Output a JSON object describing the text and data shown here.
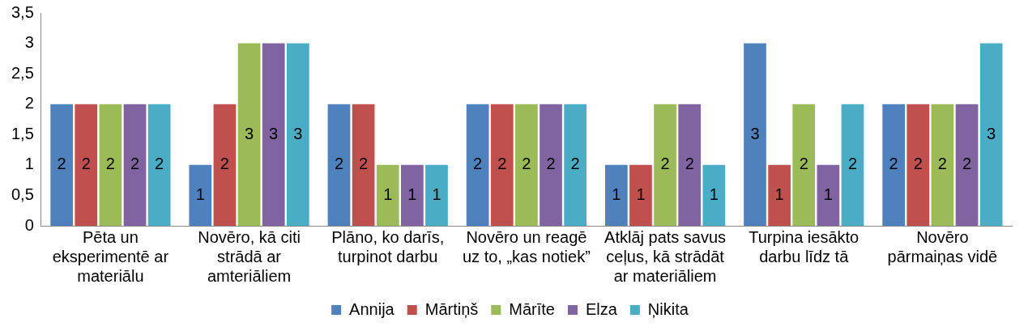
{
  "chart_data": {
    "type": "bar",
    "categories": [
      "Pēta un eksperimentē ar materiālu",
      "Novēro, kā citi strādā ar amteriāliem",
      "Plāno, ko darīs, turpinot darbu",
      "Novēro un reagē uz to, „kas notiek”",
      "Atklāj pats savus ceļus, kā strādāt ar materiāliem",
      "Turpina iesākto darbu līdz tā",
      "Novēro pārmaiņas vidē"
    ],
    "series": [
      {
        "name": "Annija",
        "color": "#4f81bd",
        "values": [
          2,
          1,
          2,
          2,
          1,
          3,
          2
        ]
      },
      {
        "name": "Mārtiņš",
        "color": "#c0504d",
        "values": [
          2,
          2,
          2,
          2,
          1,
          1,
          2
        ]
      },
      {
        "name": "Mārīte",
        "color": "#9bbb59",
        "values": [
          2,
          3,
          1,
          2,
          2,
          2,
          2
        ]
      },
      {
        "name": "Elza",
        "color": "#8064a2",
        "values": [
          2,
          3,
          1,
          2,
          2,
          1,
          2
        ]
      },
      {
        "name": "Ņikita",
        "color": "#4bacc6",
        "values": [
          2,
          3,
          1,
          2,
          1,
          2,
          3
        ]
      }
    ],
    "ylim": [
      0,
      3.5
    ],
    "yticks": [
      0,
      {
        "value": 0.5,
        "label": "0,5"
      },
      1,
      {
        "value": 1.5,
        "label": "1,5"
      },
      2,
      {
        "value": 2.5,
        "label": "2,5"
      },
      3,
      {
        "value": 3.5,
        "label": "3,5"
      }
    ],
    "grid": false,
    "legend": "bottom",
    "data_labels": true
  }
}
